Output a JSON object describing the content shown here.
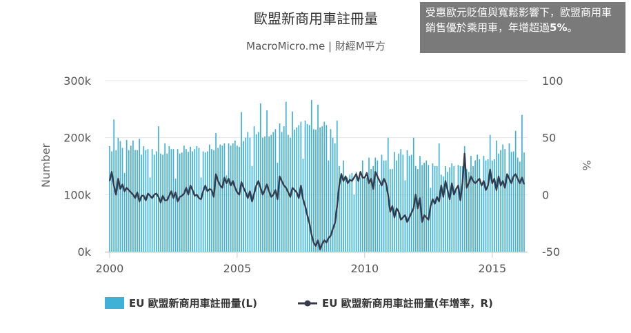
{
  "colors": {
    "bar": "#3fb1d6",
    "line": "#363b4a",
    "grid": "#e6e6e6",
    "annotation_bg": "#7a7a7a"
  },
  "annotation": {
    "text": "受惠歐元貶值與寬鬆影響下，歐盟商用車銷售優於乘用車，年增超過",
    "emphasis": "5%",
    "suffix": "。"
  },
  "chart_data": {
    "type": "bar+line",
    "title": "歐盟新商用車註冊量",
    "subtitle": "MacroMicro.me | 財經M平方",
    "ylabel_left": "Number",
    "ylabel_right": "%",
    "ylim_left": [
      0,
      300000
    ],
    "ylim_right": [
      -50,
      100
    ],
    "yticks_left": [
      "0k",
      "100k",
      "200k",
      "300k"
    ],
    "yticks_right": [
      "-50",
      "0",
      "50",
      "100"
    ],
    "xticks": [
      "2000",
      "2005",
      "2010",
      "2015"
    ],
    "x_range": [
      "2000-01",
      "2016-04"
    ],
    "frequency": "monthly",
    "start": "2000-01",
    "series": [
      {
        "name": "EU 歐盟新商用車註冊量(L)",
        "type": "bar",
        "axis": "left",
        "values": [
          185000,
          176000,
          232000,
          178000,
          200000,
          194000,
          182000,
          138000,
          196000,
          178000,
          186000,
          195000,
          178000,
          178000,
          198000,
          170000,
          185000,
          178000,
          180000,
          130000,
          180000,
          170000,
          176000,
          220000,
          172000,
          170000,
          190000,
          172000,
          185000,
          180000,
          180000,
          128000,
          180000,
          172000,
          174000,
          186000,
          180000,
          175000,
          184000,
          176000,
          180000,
          185000,
          182000,
          130000,
          176000,
          174000,
          176000,
          188000,
          180000,
          178000,
          208000,
          182000,
          188000,
          186000,
          190000,
          134000,
          190000,
          186000,
          190000,
          195000,
          186000,
          184000,
          245000,
          194000,
          200000,
          210000,
          200000,
          150000,
          220000,
          206000,
          210000,
          260000,
          200000,
          202000,
          248000,
          202000,
          205000,
          210000,
          215000,
          156000,
          225000,
          210000,
          220000,
          263000,
          205000,
          200000,
          246000,
          214000,
          218000,
          222000,
          228000,
          163000,
          230000,
          224000,
          222000,
          266000,
          215000,
          214000,
          258000,
          218000,
          220000,
          228000,
          222000,
          160000,
          215000,
          200000,
          190000,
          230000,
          150000,
          138000,
          160000,
          130000,
          130000,
          135000,
          138000,
          100000,
          140000,
          128000,
          130000,
          160000,
          130000,
          130000,
          165000,
          145000,
          150000,
          165000,
          160000,
          118000,
          170000,
          160000,
          160000,
          200000,
          145000,
          145000,
          175000,
          160000,
          172000,
          180000,
          170000,
          125000,
          178000,
          168000,
          170000,
          200000,
          150000,
          145000,
          168000,
          152000,
          156000,
          160000,
          152000,
          112000,
          155000,
          150000,
          150000,
          190000,
          135000,
          132000,
          150000,
          140000,
          148000,
          155000,
          150000,
          110000,
          152000,
          150000,
          150000,
          185000,
          145000,
          140000,
          168000,
          150000,
          160000,
          170000,
          162000,
          120000,
          168000,
          160000,
          162000,
          205000,
          160000,
          162000,
          195000,
          172000,
          178000,
          188000,
          180000,
          135000,
          190000,
          175000,
          176000,
          212000,
          165000,
          158000,
          240000,
          174000
        ]
      },
      {
        "name": "EU 歐盟新商用車註冊量(年增率，R)",
        "type": "line",
        "axis": "right",
        "values": [
          12,
          20,
          8,
          0,
          14,
          5,
          9,
          3,
          6,
          4,
          2,
          0,
          -3,
          2,
          -6,
          -1,
          -1,
          -5,
          1,
          -1,
          -3,
          0,
          1,
          -2,
          -7,
          -1,
          -5,
          -5,
          -1,
          3,
          -3,
          2,
          -6,
          -2,
          -1,
          1,
          6,
          0,
          8,
          4,
          -1,
          0,
          -3,
          -4,
          3,
          8,
          3,
          5,
          4,
          -2,
          18,
          12,
          8,
          6,
          15,
          10,
          14,
          8,
          12,
          6,
          2,
          0,
          11,
          6,
          2,
          -3,
          3,
          -6,
          1,
          8,
          12,
          6,
          0,
          4,
          9,
          3,
          -2,
          0,
          4,
          -4,
          16,
          12,
          8,
          6,
          2,
          -2,
          6,
          4,
          2,
          -3,
          8,
          -4,
          -10,
          -18,
          -25,
          -35,
          -42,
          -45,
          -40,
          -48,
          -43,
          -40,
          -42,
          -38,
          -36,
          -30,
          -25,
          -10,
          8,
          18,
          12,
          16,
          10,
          13,
          12,
          15,
          18,
          12,
          20,
          15,
          15,
          19,
          10,
          14,
          5,
          20,
          16,
          12,
          8,
          14,
          10,
          0,
          -15,
          -10,
          -20,
          -12,
          -15,
          -22,
          -20,
          -18,
          -24,
          -20,
          -16,
          -12,
          0,
          -12,
          -3,
          -24,
          -18,
          -20,
          -22,
          -10,
          -4,
          -8,
          -2,
          -6,
          8,
          -2,
          12,
          4,
          -4,
          10,
          0,
          5,
          8,
          -5,
          10,
          36,
          6,
          10,
          16,
          12,
          10,
          12,
          14,
          8,
          12,
          4,
          8,
          22,
          10,
          14,
          4,
          16,
          8,
          12,
          6,
          18,
          14,
          10,
          16,
          18,
          14,
          10,
          15,
          9
        ]
      }
    ],
    "legend_position": "bottom",
    "grid": true
  }
}
